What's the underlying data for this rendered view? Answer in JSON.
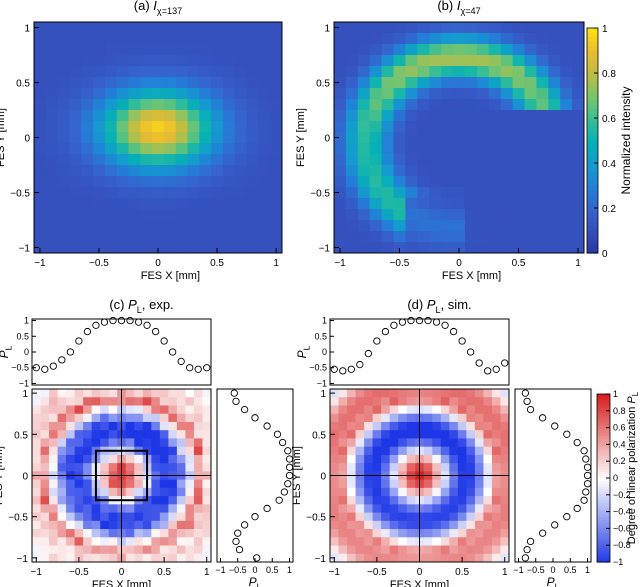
{
  "chart_data": [
    {
      "id": "a",
      "type": "heatmap",
      "title_prefix": "(a) ",
      "title_symbol": "I",
      "title_subscript": "χ=137",
      "xlabel": "FES X [mm]",
      "ylabel": "FES Y [mm]",
      "xlim": [
        -1.05,
        1.05
      ],
      "ylim": [
        -1.05,
        1.05
      ],
      "xticks": [
        "−1",
        "−0.5",
        "0",
        "0.5",
        "1"
      ],
      "yticks": [
        "−1",
        "−0.5",
        "0",
        "0.5",
        "1"
      ],
      "description": "single bright spot centered near (0, 0.1) with slight elongation in x",
      "grid": "21x21"
    },
    {
      "id": "b",
      "type": "heatmap",
      "title_prefix": "(b) ",
      "title_symbol": "I",
      "title_subscript": "χ=47",
      "xlabel": "FES X [mm]",
      "ylabel": "FES Y [mm]",
      "xlim": [
        -1.05,
        1.05
      ],
      "ylim": [
        -1.05,
        1.05
      ],
      "xticks": [
        "−1",
        "−0.5",
        "0",
        "0.5",
        "1"
      ],
      "yticks": [
        "−1",
        "−0.5",
        "0",
        "0.5",
        "1"
      ],
      "colorbar_label": "Normalized intensity",
      "colorbar_ticks": [
        "0",
        "0.2",
        "0.4",
        "0.6",
        "0.8",
        "1"
      ],
      "colorbar_range": [
        0,
        1
      ],
      "description": "crescent / arc-shaped intensity, open towards lower right",
      "grid": "21x21"
    },
    {
      "id": "c",
      "type": "heatmap",
      "title_prefix": "(c) ",
      "title_symbol": "P",
      "title_subscript": "L",
      "title_suffix": ", exp.",
      "xlabel": "FES X [mm]",
      "ylabel": "FES Y [mm]",
      "xticks": [
        "−1",
        "−0.5",
        "0",
        "0.5",
        "1"
      ],
      "yticks": [
        "−1",
        "−0.5",
        "0",
        "0.5",
        "1"
      ],
      "pl_ticks": [
        "−1",
        "−0.5",
        "0",
        "0.5",
        "1"
      ],
      "top_profile_y": [
        -0.5,
        -0.55,
        -0.45,
        -0.25,
        0.0,
        0.35,
        0.65,
        0.85,
        0.95,
        1.0,
        1.0,
        1.0,
        0.95,
        0.85,
        0.65,
        0.35,
        0.0,
        -0.3,
        -0.5,
        -0.55,
        -0.5
      ],
      "side_profile_x": [
        -0.6,
        -0.55,
        -0.3,
        0.0,
        0.35,
        0.65,
        0.8,
        0.95,
        1.0,
        1.0,
        1.0,
        0.95,
        0.85,
        0.7,
        0.35,
        0.0,
        -0.3,
        -0.5,
        -0.55,
        -0.45,
        0.05
      ],
      "rect_halfwidth_mm": 0.3,
      "grid": "21x21",
      "noisy": true
    },
    {
      "id": "d",
      "type": "heatmap",
      "title_prefix": "(d) ",
      "title_symbol": "P",
      "title_subscript": "L",
      "title_suffix": ", sim.",
      "xlabel": "FES X [mm]",
      "ylabel": "FES Y [mm]",
      "xticks": [
        "−1",
        "−0.5",
        "0",
        "0.5",
        "1"
      ],
      "yticks": [
        "−1",
        "−0.5",
        "0",
        "0.5",
        "1"
      ],
      "pl_ticks": [
        "−1",
        "−0.5",
        "0",
        "0.5",
        "1"
      ],
      "top_profile_y": [
        -0.55,
        -0.6,
        -0.55,
        -0.4,
        -0.05,
        0.35,
        0.65,
        0.85,
        0.95,
        1.0,
        1.0,
        1.0,
        0.95,
        0.85,
        0.65,
        0.35,
        0.0,
        -0.35,
        -0.6,
        -0.55,
        -0.35
      ],
      "side_profile_x": [
        -0.8,
        -0.75,
        -0.65,
        -0.3,
        0.05,
        0.4,
        0.7,
        0.9,
        0.95,
        1.0,
        1.0,
        1.0,
        0.95,
        0.9,
        0.7,
        0.4,
        0.05,
        -0.3,
        -0.65,
        -0.75,
        -0.8
      ],
      "colorbar_label": "Degree of linear polarization",
      "colorbar_symbol": "P",
      "colorbar_subscript": "L",
      "colorbar_ticks": [
        "1",
        "0.8",
        "0.6",
        "0.4",
        "0.2",
        "0",
        "−0.2",
        "−0.4",
        "−0.6",
        "−0.8",
        "−1"
      ],
      "colorbar_range": [
        -1,
        1
      ],
      "grid": "21x21",
      "noisy": false
    }
  ],
  "pl_label_symbol": "P",
  "pl_label_subscript": "L"
}
